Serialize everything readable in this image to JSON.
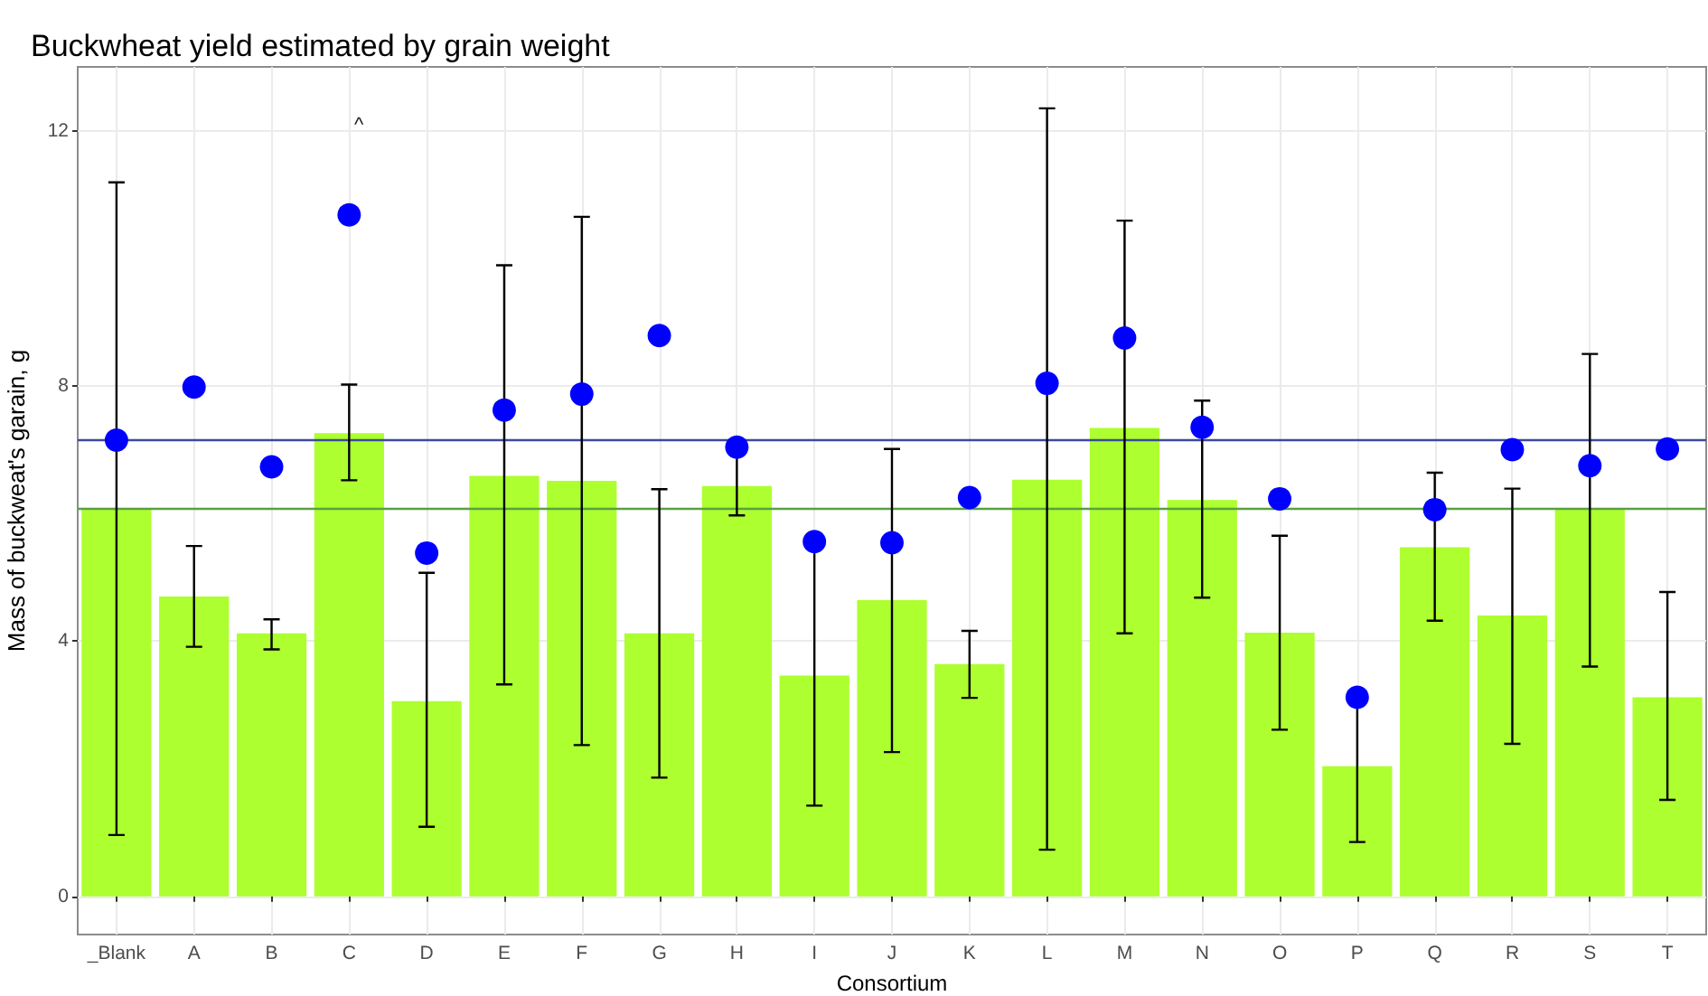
{
  "chart_data": {
    "type": "bar",
    "title": "Buckwheat yield estimated by grain weight",
    "xlabel": "Consortium",
    "ylabel": "Mass of buckweat's garain, g",
    "categories": [
      "_Blank",
      "A",
      "B",
      "C",
      "D",
      "E",
      "F",
      "G",
      "H",
      "I",
      "J",
      "K",
      "L",
      "M",
      "N",
      "O",
      "P",
      "Q",
      "R",
      "S",
      "T"
    ],
    "series": [
      {
        "color": "#adff2f",
        "values": [
          6.08,
          4.7,
          4.12,
          7.26,
          3.06,
          6.59,
          6.51,
          4.12,
          6.43,
          3.46,
          4.64,
          3.64,
          6.53,
          7.34,
          6.21,
          4.13,
          2.04,
          5.47,
          4.4,
          6.08,
          3.12
        ],
        "errors": [
          [
            0.96,
            11.19
          ],
          [
            3.91,
            5.49
          ],
          [
            3.87,
            4.34
          ],
          [
            6.52,
            8.02
          ],
          [
            1.09,
            5.07
          ],
          [
            3.32,
            9.89
          ],
          [
            2.37,
            10.65
          ],
          [
            1.86,
            6.38
          ],
          [
            5.97,
            6.95
          ],
          [
            1.42,
            5.45
          ],
          [
            2.26,
            7.01
          ],
          [
            3.11,
            4.16
          ],
          [
            0.73,
            12.35
          ],
          [
            4.12,
            10.59
          ],
          [
            4.68,
            7.77
          ],
          [
            2.61,
            5.65
          ],
          [
            0.85,
            3.2
          ],
          [
            4.32,
            6.64
          ],
          [
            2.39,
            6.39
          ],
          [
            3.6,
            8.5
          ],
          [
            1.51,
            4.77
          ]
        ]
      },
      {
        "type": "scatter",
        "color": "#0000ff",
        "marker": "circle",
        "values": [
          7.15,
          7.98,
          6.73,
          10.68,
          5.38,
          7.62,
          7.87,
          8.79,
          7.04,
          5.56,
          5.54,
          6.25,
          8.04,
          8.75,
          7.35,
          6.23,
          3.12,
          6.06,
          7.0,
          6.75,
          7.01
        ]
      }
    ],
    "ylim": [
      -0.6,
      13
    ],
    "yticks": [
      0,
      4,
      8,
      12
    ],
    "grid": true,
    "ref_lines": [
      {
        "axis": "y",
        "value": 7.15,
        "color": "#3b4a9c"
      },
      {
        "axis": "y",
        "value": 6.08,
        "color": "#5aa040"
      }
    ],
    "annotations": [
      "^"
    ]
  }
}
